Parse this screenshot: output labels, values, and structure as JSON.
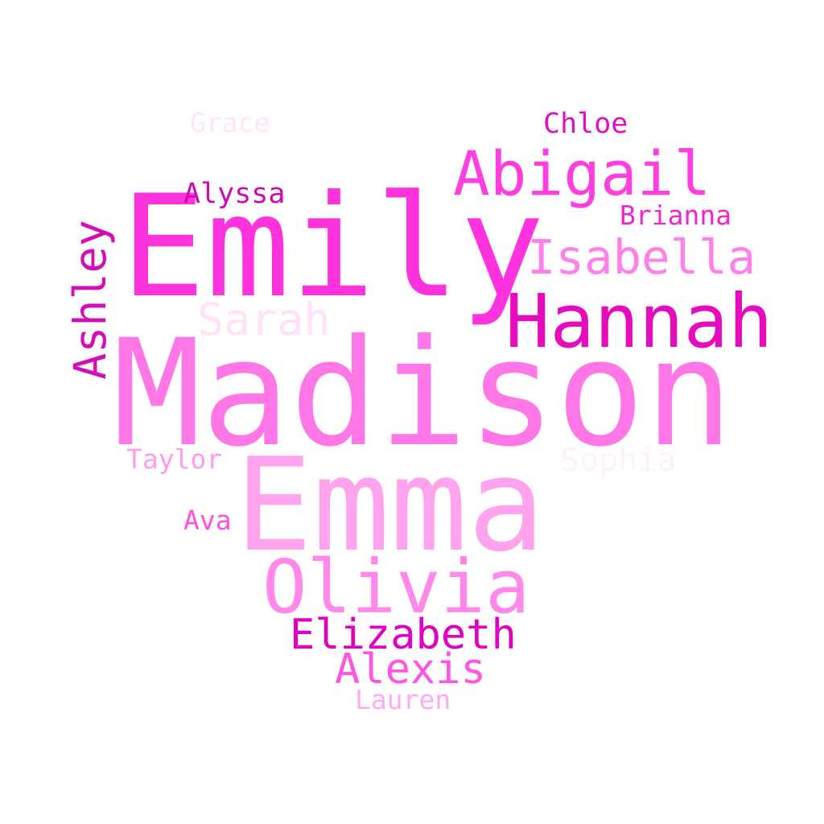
{
  "words": {
    "emily": {
      "text": "Emily",
      "color": "#ff33dd"
    },
    "madison": {
      "text": "Madison",
      "color": "#ff77e6"
    },
    "emma": {
      "text": "Emma",
      "color": "#ffa3ee"
    },
    "olivia": {
      "text": "Olivia",
      "color": "#ff88e9"
    },
    "hannah": {
      "text": "Hannah",
      "color": "#e60cbe"
    },
    "abigail": {
      "text": "Abigail",
      "color": "#ff3ee0"
    },
    "isabella": {
      "text": "Isabella",
      "color": "#ff80e8"
    },
    "ashley": {
      "text": "Ashley",
      "color": "#d40eb6"
    },
    "sarah": {
      "text": "Sarah",
      "color": "#ffe2f9"
    },
    "elizabeth": {
      "text": "Elizabeth",
      "color": "#e000c4"
    },
    "alexis": {
      "text": "Alexis",
      "color": "#ff55e2"
    },
    "sophia": {
      "text": "Sophia",
      "color": "#fff0fb"
    },
    "chloe": {
      "text": "Chloe",
      "color": "#e20fc2"
    },
    "alyssa": {
      "text": "Alyssa",
      "color": "#cc0aae"
    },
    "brianna": {
      "text": "Brianna",
      "color": "#ef25cf"
    },
    "taylor": {
      "text": "Taylor",
      "color": "#ff9be9"
    },
    "ava": {
      "text": "Ava",
      "color": "#ff4fe0"
    },
    "lauren": {
      "text": "Lauren",
      "color": "#ffabef"
    },
    "grace": {
      "text": "Grace",
      "color": "#ffe4f9"
    }
  }
}
